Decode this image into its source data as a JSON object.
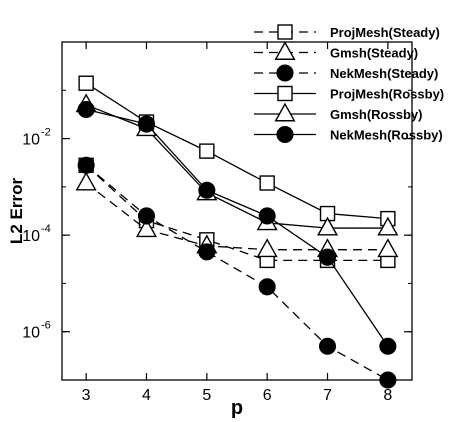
{
  "chart_data": {
    "type": "line",
    "xlabel": "p",
    "ylabel": "L2 Error",
    "xlim": [
      2.6,
      8.4
    ],
    "ylim": [
      1e-07,
      1
    ],
    "y_scale": "log",
    "grid": false,
    "legend_placement": "top-right",
    "x_ticks": [
      3,
      4,
      5,
      6,
      7,
      8
    ],
    "x_tick_labels": [
      "3",
      "4",
      "5",
      "6",
      "7",
      "8"
    ],
    "y_ticks": [
      1e-06,
      0.0001,
      0.01
    ],
    "y_tick_labels": [
      {
        "base": "10",
        "exp": "-6"
      },
      {
        "base": "10",
        "exp": "-4"
      },
      {
        "base": "10",
        "exp": "-2"
      }
    ],
    "series": [
      {
        "name": "ProjMesh(Steady)",
        "marker": "square",
        "filled": false,
        "linestyle": "dashed",
        "x": [
          3,
          4,
          5,
          6,
          7,
          8
        ],
        "values": [
          0.0028,
          0.0002,
          8e-05,
          3e-05,
          3e-05,
          3e-05
        ]
      },
      {
        "name": "Gmsh(Steady)",
        "marker": "triangle",
        "filled": false,
        "linestyle": "dashed",
        "x": [
          3,
          4,
          5,
          6,
          7,
          8
        ],
        "values": [
          0.0012,
          0.00013,
          6e-05,
          5e-05,
          5e-05,
          5e-05
        ]
      },
      {
        "name": "NekMesh(Steady)",
        "marker": "circle",
        "filled": true,
        "linestyle": "dashed",
        "x": [
          3,
          4,
          5,
          6,
          7,
          8
        ],
        "values": [
          0.0028,
          0.00025,
          4.5e-05,
          8.5e-06,
          5e-07,
          1e-07
        ]
      },
      {
        "name": "ProjMesh(Rossby)",
        "marker": "square",
        "filled": false,
        "linestyle": "solid",
        "x": [
          3,
          4,
          5,
          6,
          7,
          8
        ],
        "values": [
          0.14,
          0.022,
          0.0055,
          0.0012,
          0.00028,
          0.00022
        ]
      },
      {
        "name": "Gmsh(Rossby)",
        "marker": "triangle",
        "filled": false,
        "linestyle": "solid",
        "x": [
          3,
          4,
          5,
          6,
          7,
          8
        ],
        "values": [
          0.05,
          0.016,
          0.00075,
          0.00018,
          0.00014,
          0.00014
        ]
      },
      {
        "name": "NekMesh(Rossby)",
        "marker": "circle",
        "filled": true,
        "linestyle": "solid",
        "x": [
          3,
          4,
          5,
          6,
          7,
          8
        ],
        "values": [
          0.04,
          0.02,
          0.00085,
          0.00025,
          3.5e-05,
          5e-07
        ]
      }
    ],
    "colors": {
      "line": "#000000",
      "marker_fill_open": "#ffffff",
      "marker_fill_filled": "#000000",
      "background": "#ffffff"
    }
  }
}
